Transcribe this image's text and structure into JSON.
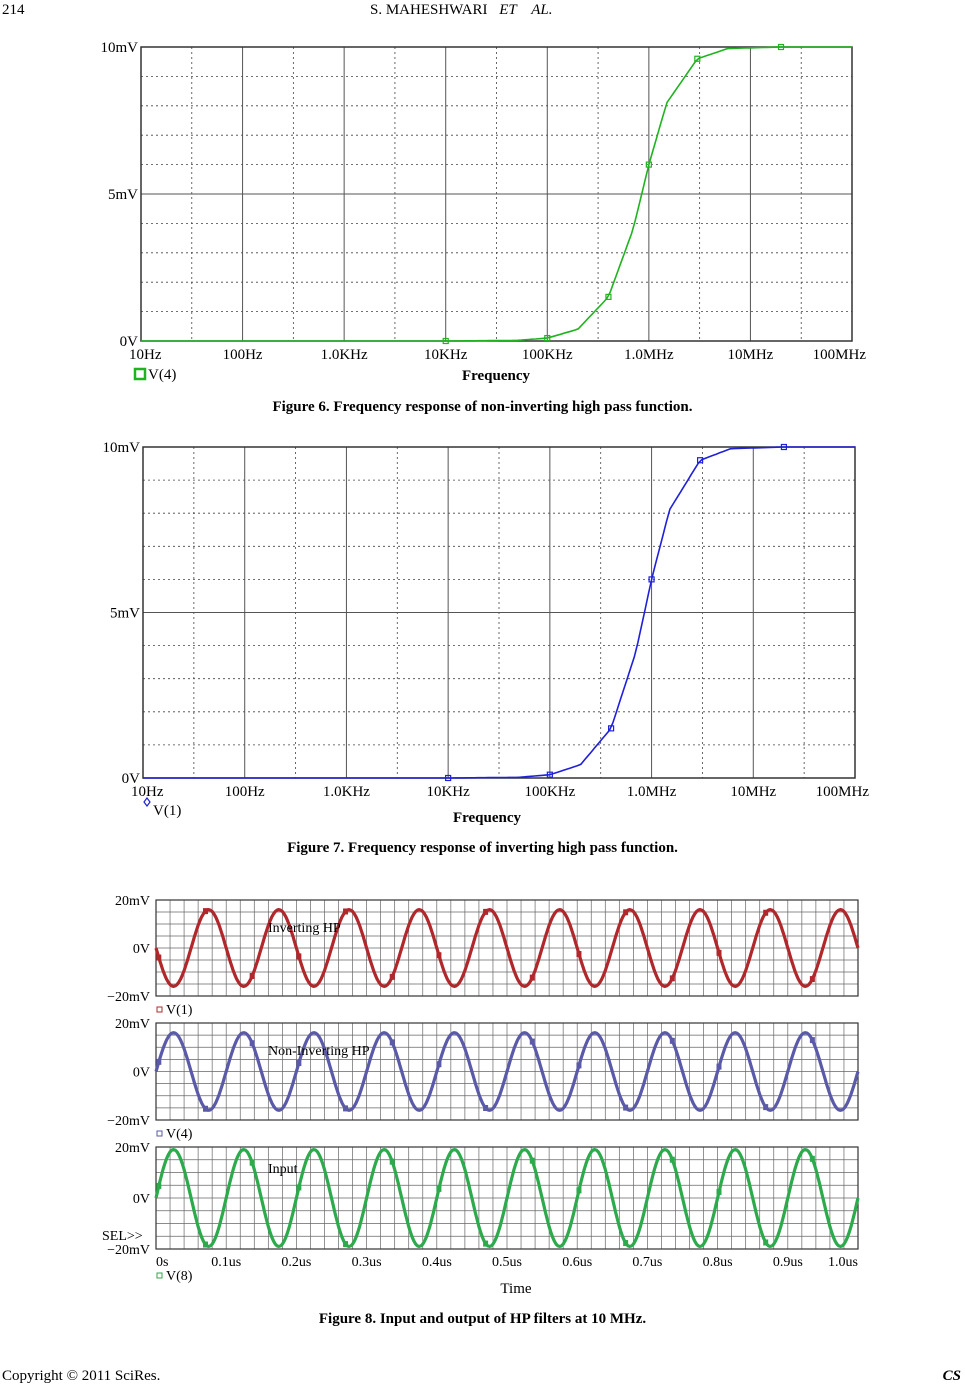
{
  "header": {
    "page_number": "214",
    "running_title": "S. MAHESHWARI",
    "et_al": "ET    AL."
  },
  "figures": [
    {
      "caption": "Figure 6. Frequency response of non-inverting high pass function.",
      "color": "#1fb41f",
      "legend": "V(4)",
      "xlabel": "Frequency"
    },
    {
      "caption": "Figure 7. Frequency response of inverting high pass function.",
      "color": "#2020d8",
      "legend": "V(1)",
      "xlabel": "Frequency"
    },
    {
      "caption": "Figure 8. Input and output of HP filters at 10 MHz.",
      "xlabel": "Time",
      "sel_label": "SEL>>"
    }
  ],
  "footer": {
    "copyright": "Copyright © 2011 SciRes.",
    "journal": "CS"
  },
  "chart_data": [
    {
      "type": "line",
      "x_scale": "log",
      "x": [
        10,
        100,
        1000,
        10000,
        100000,
        300000,
        600000,
        1000000,
        2000000,
        10000000,
        100000000
      ],
      "x_tick_labels": [
        "10Hz",
        "100Hz",
        "1.0KHz",
        "10KHz",
        "100KHz",
        "1.0MHz",
        "10MHz",
        "100MHz"
      ],
      "y_tick_labels": [
        "10mV",
        "5mV",
        "0V"
      ],
      "ylim": [
        0,
        10
      ],
      "yunit": "mV",
      "series": [
        {
          "name": "V(4)",
          "x": [
            10,
            10000,
            50000,
            100000,
            200000,
            400000,
            700000,
            1000000,
            1500000,
            3000000,
            6000000,
            20000000,
            100000000
          ],
          "values": [
            0,
            0,
            0.02,
            0.1,
            0.4,
            1.5,
            3.8,
            6,
            8.1,
            9.6,
            9.95,
            10,
            10
          ]
        }
      ],
      "xlabel": "Frequency",
      "grid": true
    },
    {
      "type": "line",
      "x_scale": "log",
      "x_tick_labels": [
        "10Hz",
        "100Hz",
        "1.0KHz",
        "10KHz",
        "100KHz",
        "1.0MHz",
        "10MHz",
        "100MHz"
      ],
      "y_tick_labels": [
        "10mV",
        "5mV",
        "0V"
      ],
      "ylim": [
        0,
        10
      ],
      "yunit": "mV",
      "series": [
        {
          "name": "V(1)",
          "x": [
            10,
            10000,
            50000,
            100000,
            200000,
            400000,
            700000,
            1000000,
            1500000,
            3000000,
            6000000,
            20000000,
            100000000
          ],
          "values": [
            0,
            0,
            0.02,
            0.1,
            0.4,
            1.5,
            3.8,
            6,
            8.1,
            9.6,
            9.95,
            10,
            10
          ]
        }
      ],
      "xlabel": "Frequency",
      "grid": true
    },
    {
      "type": "line",
      "xlim": [
        0,
        1.0
      ],
      "xunit": "us",
      "x_tick_labels": [
        "0s",
        "0.1us",
        "0.2us",
        "0.3us",
        "0.4us",
        "0.5us",
        "0.6us",
        "0.7us",
        "0.8us",
        "0.9us",
        "1.0us"
      ],
      "xlabel": "Time",
      "panels": [
        {
          "legend": "V(1)",
          "annotation": "Inverting HP",
          "color": "#b0282c",
          "y_tick_labels": [
            "20mV",
            "0V",
            "−20mV"
          ],
          "ylim": [
            -20,
            20
          ],
          "amplitude": 16,
          "frequency_mhz": 10,
          "phase_deg": 180
        },
        {
          "legend": "V(4)",
          "annotation": "Non-Inverting HP",
          "color": "#5a5aa8",
          "y_tick_labels": [
            "20mV",
            "0V",
            "−20mV"
          ],
          "ylim": [
            -20,
            20
          ],
          "amplitude": 16,
          "frequency_mhz": 10,
          "phase_deg": 0
        },
        {
          "legend": "V(8)",
          "annotation": "Input",
          "color": "#2caa4c",
          "y_tick_labels": [
            "20mV",
            "0V",
            "−20mV"
          ],
          "ylim": [
            -20,
            20
          ],
          "amplitude": 19,
          "frequency_mhz": 10,
          "phase_deg": 0
        }
      ],
      "grid": true
    }
  ]
}
